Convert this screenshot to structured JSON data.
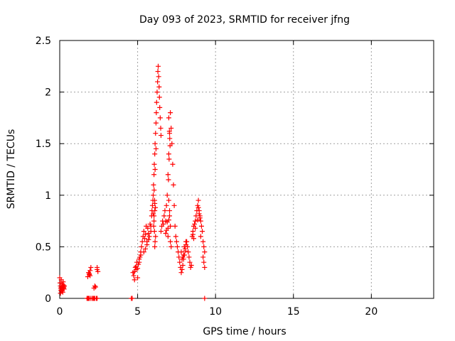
{
  "colors": {
    "series": "#ff0000",
    "grid": "#a0a0a0",
    "axis": "#000000"
  },
  "chart_data": {
    "type": "scatter",
    "title": "Day 093 of 2023, SRMTID for receiver jfng",
    "xlabel": "GPS time / hours",
    "ylabel": "SRMTID / TECUs",
    "xlim": [
      0,
      24
    ],
    "ylim": [
      0,
      2.5
    ],
    "xticks": [
      0,
      5,
      10,
      15,
      20
    ],
    "xtick_labels": [
      "0",
      "5",
      "10",
      "15",
      "20"
    ],
    "yticks": [
      0,
      0.5,
      1,
      1.5,
      2,
      2.5
    ],
    "ytick_labels": [
      "0",
      "0.5",
      "1",
      "1.5",
      "2",
      "2.5"
    ],
    "grid": true,
    "marker": "+",
    "series": [
      {
        "name": "SRMTID",
        "x": [
          0.0,
          0.02,
          0.04,
          0.06,
          0.08,
          0.1,
          0.12,
          0.14,
          0.16,
          0.18,
          0.2,
          0.22,
          0.24,
          0.26,
          0.28,
          0.3,
          0.05,
          0.1,
          0.15,
          0.2,
          0.25,
          1.75,
          1.8,
          1.85,
          1.9,
          1.95,
          2.0,
          1.8,
          1.9,
          1.85,
          1.95,
          2.1,
          2.15,
          2.2,
          2.25,
          2.3,
          2.35,
          2.4,
          2.2,
          2.25,
          2.4,
          2.45,
          2.4,
          1.85,
          1.9,
          2.0,
          4.6,
          4.65,
          4.7,
          4.75,
          4.8,
          4.85,
          4.9,
          4.95,
          5.0,
          5.05,
          5.1,
          5.15,
          5.2,
          5.25,
          4.8,
          4.9,
          5.0,
          5.1,
          5.2,
          5.3,
          5.35,
          5.4,
          5.45,
          5.5,
          5.55,
          5.6,
          5.65,
          5.7,
          5.75,
          5.8,
          5.85,
          5.5,
          5.6,
          5.7,
          5.4,
          5.85,
          5.9,
          5.92,
          5.95,
          5.98,
          6.0,
          6.02,
          6.05,
          6.07,
          6.1,
          6.12,
          6.15,
          6.18,
          6.2,
          6.22,
          6.25,
          6.28,
          6.3,
          6.32,
          6.35,
          6.38,
          6.4,
          6.42,
          6.45,
          6.48,
          6.5,
          6.05,
          6.1,
          6.15,
          6.08,
          6.12,
          6.05,
          6.1,
          6.0,
          6.06,
          6.12,
          6.18,
          6.1,
          6.14,
          6.03,
          6.09,
          6.5,
          6.55,
          6.6,
          6.65,
          6.7,
          6.75,
          6.8,
          6.85,
          6.9,
          6.95,
          7.0,
          7.05,
          7.1,
          7.15,
          7.2,
          7.25,
          7.3,
          7.35,
          7.4,
          7.45,
          6.9,
          6.95,
          7.0,
          7.05,
          7.1,
          6.98,
          7.02,
          7.06,
          7.0,
          7.04,
          7.08,
          7.0,
          7.05,
          6.95,
          7.1,
          7.15,
          6.8,
          6.85,
          7.5,
          7.55,
          7.6,
          7.65,
          7.7,
          7.75,
          7.8,
          7.85,
          7.9,
          7.95,
          8.0,
          8.05,
          8.1,
          8.15,
          8.2,
          8.25,
          8.3,
          8.35,
          8.4,
          8.45,
          7.8,
          7.9,
          8.0,
          8.1,
          7.85,
          7.95,
          8.05,
          8.5,
          8.55,
          8.6,
          8.65,
          8.7,
          8.75,
          8.8,
          8.85,
          8.9,
          8.95,
          9.0,
          9.05,
          9.1,
          9.15,
          9.2,
          9.25,
          9.3,
          8.9,
          8.95,
          9.0,
          8.85,
          8.7,
          9.05,
          9.2,
          9.25,
          9.3,
          8.55,
          8.6,
          9.3
        ],
        "y": [
          0.2,
          0.15,
          0.12,
          0.1,
          0.08,
          0.18,
          0.11,
          0.09,
          0.14,
          0.12,
          0.1,
          0.16,
          0.13,
          0.11,
          0.09,
          0.12,
          0.05,
          0.07,
          0.08,
          0.06,
          0.1,
          0.0,
          0.0,
          0.25,
          0.23,
          0.27,
          0.3,
          0.21,
          0.24,
          0.0,
          0.22,
          0.0,
          0.0,
          0.1,
          0.12,
          0.11,
          0.0,
          0.0,
          0.0,
          0.0,
          0.3,
          0.26,
          0.28,
          0.0,
          0.0,
          0.0,
          0.0,
          0.0,
          0.25,
          0.22,
          0.18,
          0.3,
          0.28,
          0.35,
          0.2,
          0.33,
          0.38,
          0.4,
          0.45,
          0.5,
          0.26,
          0.31,
          0.29,
          0.35,
          0.42,
          0.55,
          0.6,
          0.65,
          0.58,
          0.62,
          0.7,
          0.55,
          0.68,
          0.63,
          0.6,
          0.72,
          0.65,
          0.48,
          0.52,
          0.57,
          0.45,
          0.7,
          0.8,
          0.85,
          0.9,
          0.95,
          1.0,
          1.1,
          1.2,
          1.3,
          1.4,
          1.5,
          1.6,
          1.7,
          1.8,
          1.9,
          2.0,
          2.1,
          2.2,
          2.25,
          2.15,
          2.05,
          1.95,
          1.85,
          1.75,
          1.65,
          1.58,
          0.8,
          0.85,
          0.6,
          0.65,
          0.55,
          0.75,
          0.5,
          0.82,
          1.05,
          1.25,
          1.45,
          0.92,
          0.88,
          0.7,
          0.95,
          0.65,
          0.7,
          0.75,
          0.72,
          0.8,
          0.85,
          0.75,
          0.9,
          1.0,
          1.2,
          1.4,
          1.6,
          1.8,
          1.65,
          1.5,
          1.3,
          1.1,
          0.9,
          0.7,
          0.6,
          0.74,
          0.68,
          0.76,
          0.8,
          0.7,
          1.15,
          1.35,
          1.55,
          1.75,
          1.62,
          1.48,
          0.95,
          0.85,
          0.6,
          0.55,
          0.5,
          0.63,
          0.66,
          0.55,
          0.5,
          0.45,
          0.4,
          0.35,
          0.3,
          0.25,
          0.28,
          0.32,
          0.38,
          0.42,
          0.48,
          0.52,
          0.55,
          0.5,
          0.45,
          0.4,
          0.35,
          0.3,
          0.32,
          0.45,
          0.4,
          0.5,
          0.55,
          0.38,
          0.42,
          0.46,
          0.6,
          0.65,
          0.7,
          0.72,
          0.75,
          0.8,
          0.85,
          0.9,
          0.95,
          0.85,
          0.8,
          0.75,
          0.7,
          0.65,
          0.55,
          0.5,
          0.45,
          0.88,
          0.82,
          0.78,
          0.76,
          0.68,
          0.6,
          0.4,
          0.35,
          0.3,
          0.62,
          0.58,
          0.0
        ]
      }
    ]
  }
}
